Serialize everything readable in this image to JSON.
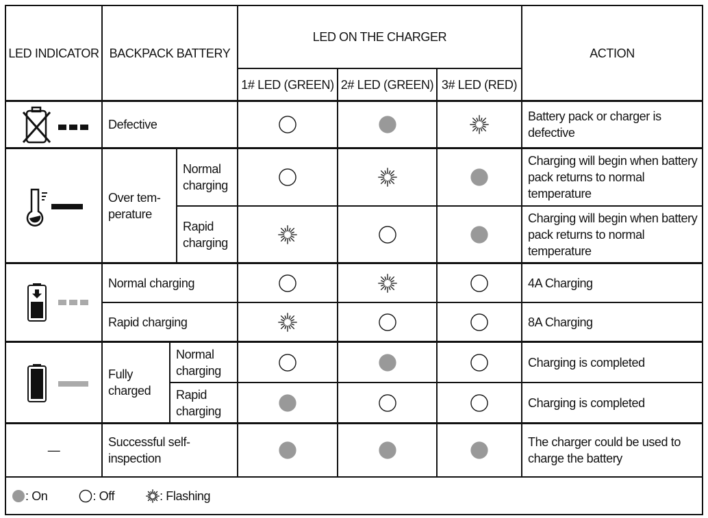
{
  "header": {
    "led_indicator": "LED INDICATOR",
    "backpack_battery": "BACKPACK BATTERY",
    "led_on_charger": "LED ON THE CHARGER",
    "led1": "1# LED (GREEN)",
    "led2": "2# LED (GREEN)",
    "led3": "3# LED (RED)",
    "action": "ACTION"
  },
  "rows": {
    "defective": {
      "icon": "battery-crossed-icon",
      "indicator": "three-black-dashes",
      "label": "Defective",
      "leds": [
        "off",
        "on",
        "flash"
      ],
      "action": "Battery pack or charger is defective"
    },
    "over_temp": {
      "icon": "thermometer-icon",
      "indicator": "solid-black-bar",
      "label": "Over tem-perature",
      "normal": {
        "label": "Normal charging",
        "leds": [
          "off",
          "flash",
          "on"
        ],
        "action": "Charging will begin when battery pack returns to normal temperature"
      },
      "rapid": {
        "label": "Rapid charging",
        "leds": [
          "flash",
          "off",
          "on"
        ],
        "action": "Charging will begin when battery pack returns to normal temperature"
      }
    },
    "charging": {
      "icon": "battery-charging-icon",
      "indicator": "three-gray-dashes",
      "normal": {
        "label": "Normal charging",
        "leds": [
          "off",
          "flash",
          "off"
        ],
        "action": "4A Charging"
      },
      "rapid": {
        "label": "Rapid charging",
        "leds": [
          "flash",
          "off",
          "off"
        ],
        "action": "8A Charging"
      }
    },
    "full": {
      "icon": "battery-full-icon",
      "indicator": "solid-gray-bar",
      "label": "Fully charged",
      "normal": {
        "label": "Normal charging",
        "leds": [
          "off",
          "on",
          "off"
        ],
        "action": "Charging is completed"
      },
      "rapid": {
        "label": "Rapid charging",
        "leds": [
          "on",
          "off",
          "off"
        ],
        "action": "Charging is completed"
      }
    },
    "self_inspection": {
      "indicator": "—",
      "label": "Successful self-inspection",
      "leds": [
        "on",
        "on",
        "on"
      ],
      "action": "The charger could be used to charge the battery"
    }
  },
  "legend": {
    "on": ": On",
    "off": ": Off",
    "flash": ": Flashing"
  },
  "colors": {
    "on": "#999999",
    "border": "#111111",
    "indicator_gray": "#aaaaaa"
  }
}
